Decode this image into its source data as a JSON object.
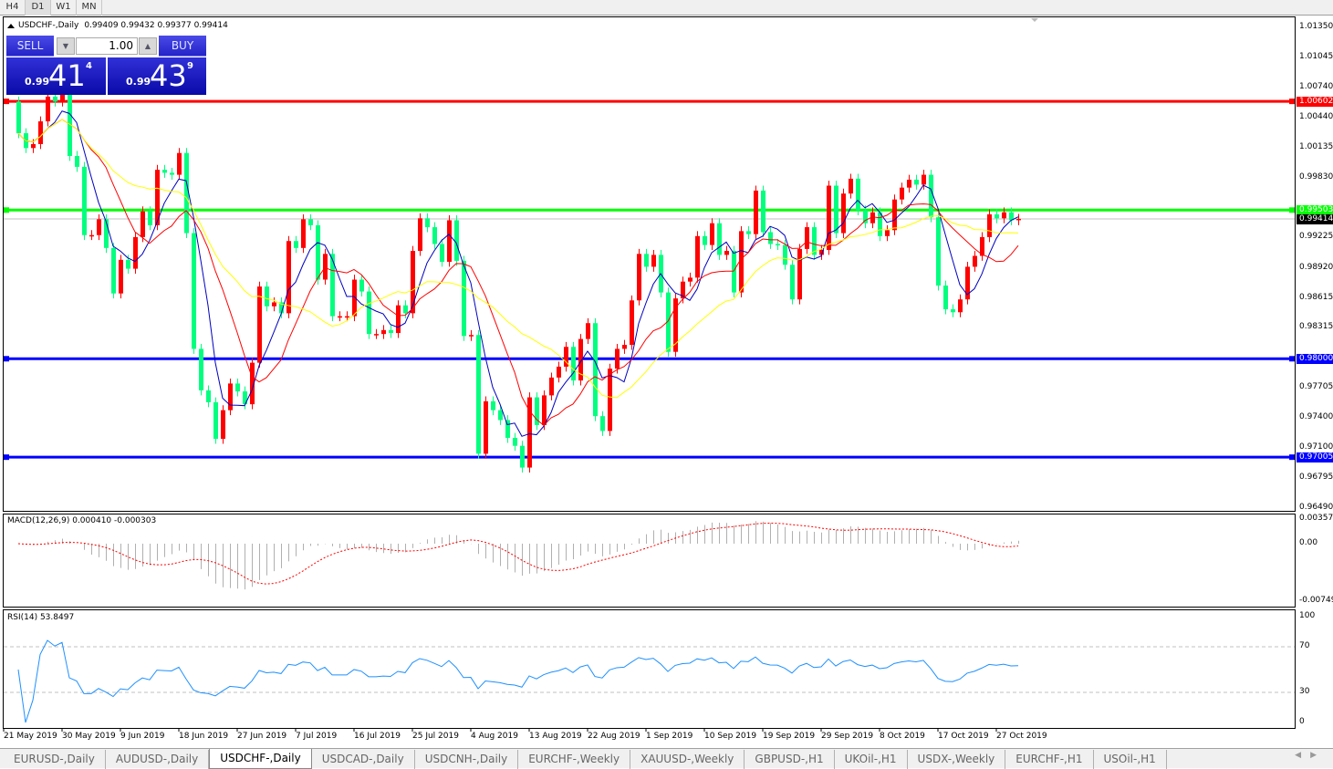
{
  "timeframes": [
    "H4",
    "D1",
    "W1",
    "MN"
  ],
  "active_timeframe": "D1",
  "chart": {
    "symbol": "USDCHF-,Daily",
    "ohlc_readout": "0.99409 0.99432 0.99377 0.99414",
    "bullish_color": "#ff0000",
    "bearish_color": "#00ff7f"
  },
  "trade_panel": {
    "sell_label": "SELL",
    "buy_label": "BUY",
    "lot": "1.00",
    "sell_price": {
      "small": "0.99",
      "big": "41",
      "pip": "4"
    },
    "buy_price": {
      "small": "0.99",
      "big": "43",
      "pip": "9"
    }
  },
  "price_axis": [
    "1.01350",
    "1.01045",
    "1.00740",
    "1.00440",
    "1.00135",
    "0.99830",
    "0.99225",
    "0.98920",
    "0.98615",
    "0.98315",
    "0.97705",
    "0.97400",
    "0.97100",
    "0.96795",
    "0.96490"
  ],
  "levels": [
    {
      "price": 1.00602,
      "label": "1.00602",
      "color": "#ff0000"
    },
    {
      "price": 0.99503,
      "label": "0.99503",
      "color": "#00ff00"
    },
    {
      "price": 0.98,
      "label": "0.98000",
      "color": "#0000ff"
    },
    {
      "price": 0.97005,
      "label": "0.97005",
      "color": "#0000ff"
    }
  ],
  "current_price": {
    "price": 0.99414,
    "label": "0.99414"
  },
  "macd": {
    "label": "MACD(12,26,9) 0.000410 -0.000303",
    "axis": [
      "0.003574",
      "0.00",
      "-0.00749"
    ]
  },
  "rsi": {
    "label": "RSI(14) 53.8497",
    "axis": [
      "100",
      "70",
      "30",
      "0"
    ]
  },
  "date_axis": [
    "21 May 2019",
    "30 May 2019",
    "9 Jun 2019",
    "18 Jun 2019",
    "27 Jun 2019",
    "7 Jul 2019",
    "16 Jul 2019",
    "25 Jul 2019",
    "4 Aug 2019",
    "13 Aug 2019",
    "22 Aug 2019",
    "1 Sep 2019",
    "10 Sep 2019",
    "19 Sep 2019",
    "29 Sep 2019",
    "8 Oct 2019",
    "17 Oct 2019",
    "27 Oct 2019"
  ],
  "tabs": [
    "EURUSD-,Daily",
    "AUDUSD-,Daily",
    "USDCHF-,Daily",
    "USDCAD-,Daily",
    "USDCNH-,Daily",
    "EURCHF-,Weekly",
    "XAUUSD-,Weekly",
    "GBPUSD-,H1",
    "UKOil-,H1",
    "USDX-,Weekly",
    "EURCHF-,H1",
    "USOil-,H1"
  ],
  "active_tab": "USDCHF-,Daily",
  "chart_data": {
    "type": "candlestick",
    "first_open": 1.006,
    "closes": [
      1.0028,
      1.0013,
      1.0017,
      1.004,
      1.0065,
      1.006,
      1.007,
      1.0005,
      0.9994,
      0.9925,
      0.9925,
      0.9941,
      0.9912,
      0.9866,
      0.99,
      0.9891,
      0.9923,
      0.9949,
      0.9935,
      0.9991,
      0.9988,
      0.9986,
      1.0008,
      0.9927,
      0.981,
      0.9768,
      0.9756,
      0.9719,
      0.9748,
      0.9775,
      0.9767,
      0.9754,
      0.9796,
      0.9873,
      0.9853,
      0.9857,
      0.9846,
      0.9919,
      0.9912,
      0.9941,
      0.9935,
      0.988,
      0.9906,
      0.9843,
      0.9843,
      0.9843,
      0.988,
      0.9868,
      0.9825,
      0.9825,
      0.9829,
      0.9826,
      0.9854,
      0.9846,
      0.9909,
      0.9942,
      0.9933,
      0.9916,
      0.9898,
      0.994,
      0.9899,
      0.9823,
      0.9824,
      0.9704,
      0.9757,
      0.9748,
      0.9738,
      0.972,
      0.9712,
      0.969,
      0.9761,
      0.9733,
      0.9763,
      0.9781,
      0.9792,
      0.9812,
      0.9778,
      0.982,
      0.9836,
      0.9742,
      0.9727,
      0.979,
      0.981,
      0.9814,
      0.9859,
      0.9906,
      0.9893,
      0.9905,
      0.9867,
      0.9807,
      0.9861,
      0.9878,
      0.9882,
      0.9924,
      0.9915,
      0.9937,
      0.9905,
      0.9909,
      0.9867,
      0.9929,
      0.9926,
      0.997,
      0.9928,
      0.9916,
      0.9915,
      0.9895,
      0.986,
      0.9911,
      0.9933,
      0.9905,
      0.991,
      0.9975,
      0.9927,
      0.9967,
      0.9982,
      0.995,
      0.9937,
      0.9948,
      0.9924,
      0.993,
      0.9961,
      0.9973,
      0.9981,
      0.9976,
      0.9986,
      0.9943,
      0.9874,
      0.985,
      0.9847,
      0.986,
      0.9893,
      0.9904,
      0.9923,
      0.9946,
      0.9942,
      0.9948,
      0.994,
      0.99414
    ],
    "ylim": [
      0.9649,
      1.0135
    ]
  }
}
